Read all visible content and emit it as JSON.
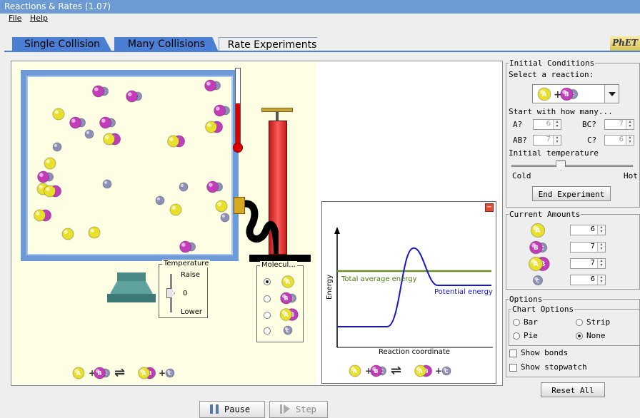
{
  "window": {
    "title": "Reactions & Rates (1.07)"
  },
  "menu": {
    "file": "File",
    "help": "Help"
  },
  "tabs": [
    {
      "label": "Single Collision",
      "active": false
    },
    {
      "label": "Many Collisions",
      "active": false
    },
    {
      "label": "Rate Experiments",
      "active": true
    }
  ],
  "logo": "PhET",
  "temperature_control": {
    "title": "Temperature",
    "raise": "Raise",
    "zero": "0",
    "lower": "Lower"
  },
  "molecule_panel": {
    "title": "Molecul...",
    "selected_index": 0,
    "options": [
      "A",
      "BC",
      "AB",
      "C"
    ]
  },
  "equation": {
    "a": "A",
    "bc": "BC",
    "ab": "AB",
    "c": "C",
    "plus": "+",
    "arrow": "⇌"
  },
  "energy_chart": {
    "y_label": "Energy",
    "x_label": "Reaction coordinate",
    "total_label": "Total average energy",
    "potential_label": "Potential energy"
  },
  "initial_conditions": {
    "title": "Initial Conditions",
    "select_reaction": "Select a reaction:",
    "start_with": "Start with how many...",
    "a_label": "A?",
    "a_value": "6",
    "bc_label": "BC?",
    "bc_value": "7",
    "ab_label": "AB?",
    "ab_value": "7",
    "c_label": "C?",
    "c_value": "6",
    "initial_temperature": "Initial temperature",
    "temperature_level": 0.4,
    "cold": "Cold",
    "hot": "Hot",
    "end_button": "End Experiment"
  },
  "current_amounts": {
    "title": "Current Amounts",
    "a": "6",
    "bc": "7",
    "ab": "7",
    "c": "6"
  },
  "options": {
    "title": "Options",
    "chart_options": "Chart Options",
    "bar": "Bar",
    "strip": "Strip",
    "pie": "Pie",
    "none": "None",
    "selected": "None",
    "show_bonds": "Show bonds",
    "show_stopwatch": "Show stopwatch",
    "reset": "Reset All"
  },
  "controls": {
    "pause": "Pause",
    "step": "Step"
  },
  "colors": {
    "a": "#e8e02c",
    "b": "#c23bb8",
    "c": "#8e8fb8",
    "tab_blue": "#4a7fd3"
  }
}
